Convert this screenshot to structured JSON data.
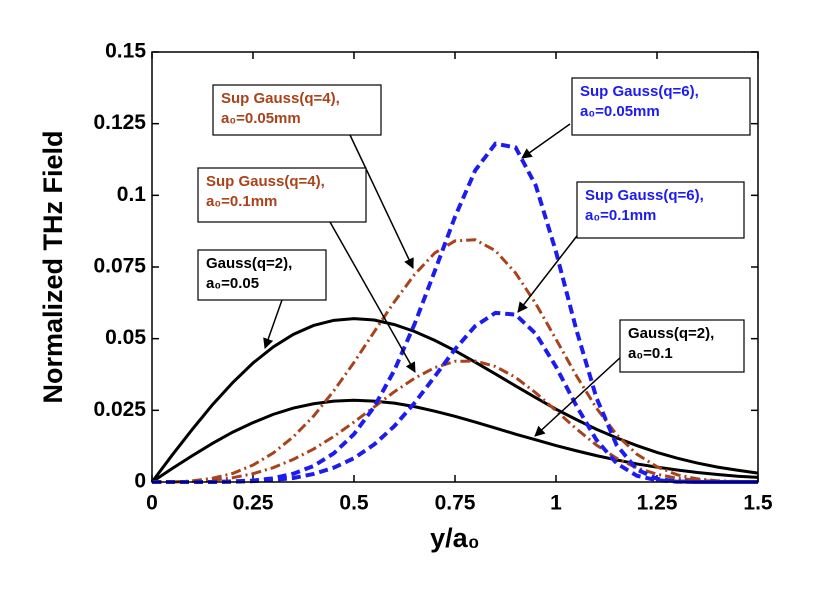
{
  "chart_data": {
    "type": "line",
    "x_label": "y/a₀",
    "y_label": "Normalized THz Field",
    "xlim": [
      0,
      1.5
    ],
    "ylim": [
      0,
      0.15
    ],
    "xticks": [
      0,
      0.25,
      0.5,
      0.75,
      1,
      1.25,
      1.5
    ],
    "yticks": [
      0,
      0.025,
      0.05,
      0.075,
      0.1,
      0.125,
      0.15
    ],
    "x": [
      0,
      0.05,
      0.1,
      0.15,
      0.2,
      0.25,
      0.3,
      0.35,
      0.4,
      0.45,
      0.5,
      0.55,
      0.6,
      0.65,
      0.7,
      0.75,
      0.8,
      0.85,
      0.9,
      0.95,
      1,
      1.05,
      1.1,
      1.15,
      1.2,
      1.25,
      1.3,
      1.35,
      1.4,
      1.45,
      1.5
    ],
    "series": [
      {
        "annotation": [
          "Gauss(q=2),",
          "a₀=0.05"
        ],
        "color": "#000000",
        "style": "solid",
        "values": [
          0,
          0.0094,
          0.0184,
          0.027,
          0.0347,
          0.0415,
          0.0471,
          0.0515,
          0.0546,
          0.0564,
          0.057,
          0.0565,
          0.0549,
          0.0525,
          0.0494,
          0.0458,
          0.0418,
          0.0377,
          0.0335,
          0.0294,
          0.0254,
          0.0218,
          0.0184,
          0.0154,
          0.0127,
          0.0103,
          0.0083,
          0.0066,
          0.0052,
          0.0041,
          0.0031
        ]
      },
      {
        "annotation": [
          "Gauss(q=2),",
          "a₀=0.1"
        ],
        "color": "#000000",
        "style": "solid",
        "values": [
          0,
          0.0047,
          0.0092,
          0.0135,
          0.0174,
          0.0207,
          0.0236,
          0.0258,
          0.0273,
          0.0282,
          0.0285,
          0.0282,
          0.0275,
          0.0263,
          0.0247,
          0.0229,
          0.0209,
          0.0188,
          0.0167,
          0.0147,
          0.0127,
          0.0109,
          0.0092,
          0.0077,
          0.0063,
          0.0052,
          0.0042,
          0.0033,
          0.0026,
          0.002,
          0.0016
        ]
      },
      {
        "annotation": [
          "Sup Gauss(q=4),",
          "a₀=0.05mm"
        ],
        "color": "#a8431b",
        "style": "dashdot",
        "values": [
          0,
          0,
          0.0004,
          0.0013,
          0.003,
          0.0059,
          0.0101,
          0.0158,
          0.023,
          0.0318,
          0.0417,
          0.0524,
          0.0629,
          0.0724,
          0.0799,
          0.0841,
          0.0845,
          0.0807,
          0.0729,
          0.0622,
          0.0498,
          0.0372,
          0.0258,
          0.0165,
          0.0097,
          0.0053,
          0.0025,
          0.0011,
          0.0004,
          0.0002,
          0
        ]
      },
      {
        "annotation": [
          "Sup Gauss(q=4),",
          "a₀=0.1mm"
        ],
        "color": "#a8431b",
        "style": "dashdot",
        "values": [
          0,
          0,
          0.0002,
          0.0006,
          0.0015,
          0.0029,
          0.005,
          0.0079,
          0.0115,
          0.0159,
          0.0209,
          0.0262,
          0.0315,
          0.0362,
          0.0399,
          0.0421,
          0.0422,
          0.0403,
          0.0365,
          0.0311,
          0.0249,
          0.0186,
          0.0129,
          0.0083,
          0.0049,
          0.0027,
          0.0013,
          0.0006,
          0.0002,
          0.0001,
          0
        ]
      },
      {
        "annotation": [
          "Sup Gauss(q=6),",
          "a₀=0.05mm"
        ],
        "color": "#1c1cf0",
        "style": "dashed",
        "values": [
          0,
          0,
          0,
          0,
          0.0002,
          0.0005,
          0.0013,
          0.0029,
          0.0056,
          0.01,
          0.0167,
          0.0262,
          0.039,
          0.0551,
          0.0736,
          0.0925,
          0.1087,
          0.118,
          0.1167,
          0.1034,
          0.0803,
          0.0533,
          0.0294,
          0.0129,
          0.0044,
          0.0011,
          0.0002,
          0,
          0,
          0,
          0
        ]
      },
      {
        "annotation": [
          "Sup Gauss(q=6),",
          "a₀=0.1mm"
        ],
        "color": "#1c1cf0",
        "style": "dashed",
        "values": [
          0,
          0,
          0,
          0,
          0.0001,
          0.0003,
          0.0007,
          0.0014,
          0.0028,
          0.005,
          0.0083,
          0.0131,
          0.0195,
          0.0276,
          0.0368,
          0.0463,
          0.0544,
          0.059,
          0.0584,
          0.0517,
          0.0402,
          0.0267,
          0.0147,
          0.0065,
          0.0022,
          0.0006,
          0.0001,
          0,
          0,
          0,
          0
        ]
      }
    ]
  }
}
